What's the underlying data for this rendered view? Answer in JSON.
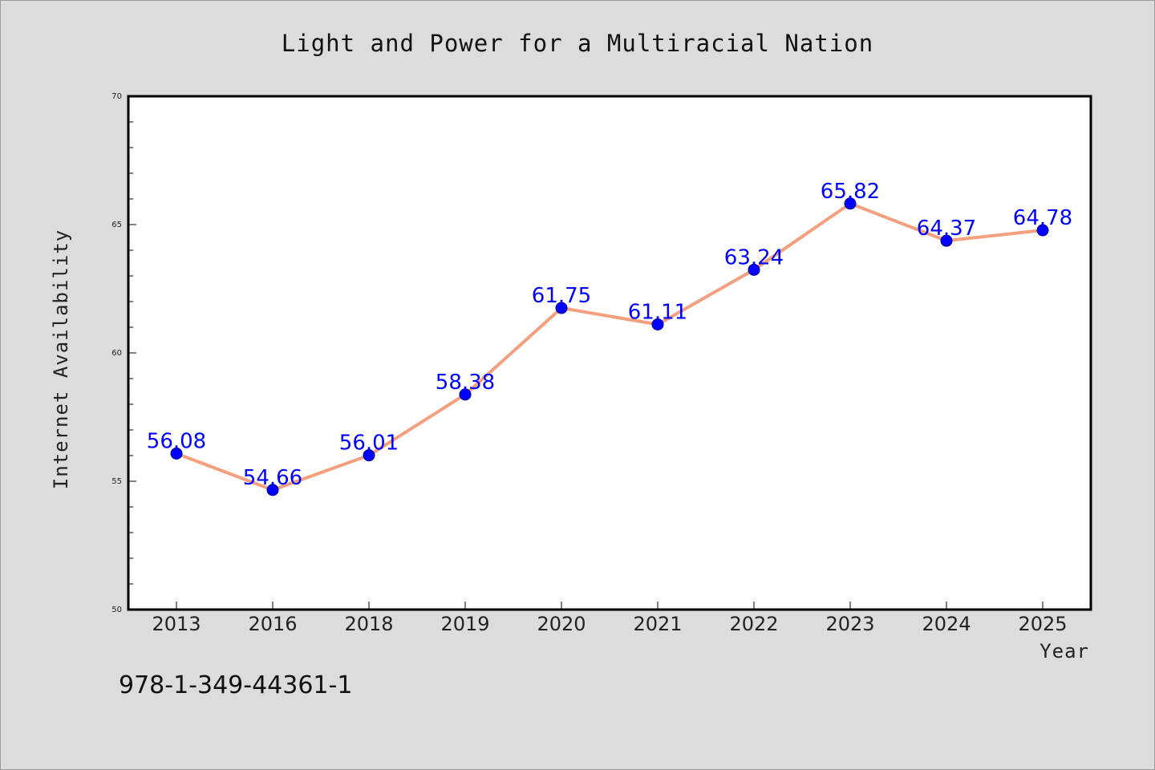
{
  "chart_data": {
    "type": "line",
    "title": "Light and Power for a Multiracial Nation",
    "xlabel": "Year",
    "ylabel": "Internet Availability",
    "categories": [
      "2013",
      "2016",
      "2018",
      "2019",
      "2020",
      "2021",
      "2022",
      "2023",
      "2024",
      "2025"
    ],
    "series": [
      {
        "values": [
          56.08,
          54.66,
          56.01,
          58.38,
          61.75,
          61.11,
          63.24,
          65.82,
          64.37,
          64.78
        ],
        "data_labels": [
          "56.08",
          "54.66",
          "56.01",
          "58.38",
          "61.75",
          "61.11",
          "63.24",
          "65.82",
          "64.37",
          "64.78"
        ],
        "line_color": "#f4a07e",
        "marker_color": "#0000ff"
      }
    ],
    "ylim": [
      50,
      70
    ],
    "yticks": [
      50,
      55,
      60,
      65,
      70
    ],
    "ytick_labels": [
      "50",
      "55",
      "60",
      "65",
      "70"
    ],
    "grid": false,
    "legend": "none"
  },
  "footnote": "978-1-349-44361-1"
}
